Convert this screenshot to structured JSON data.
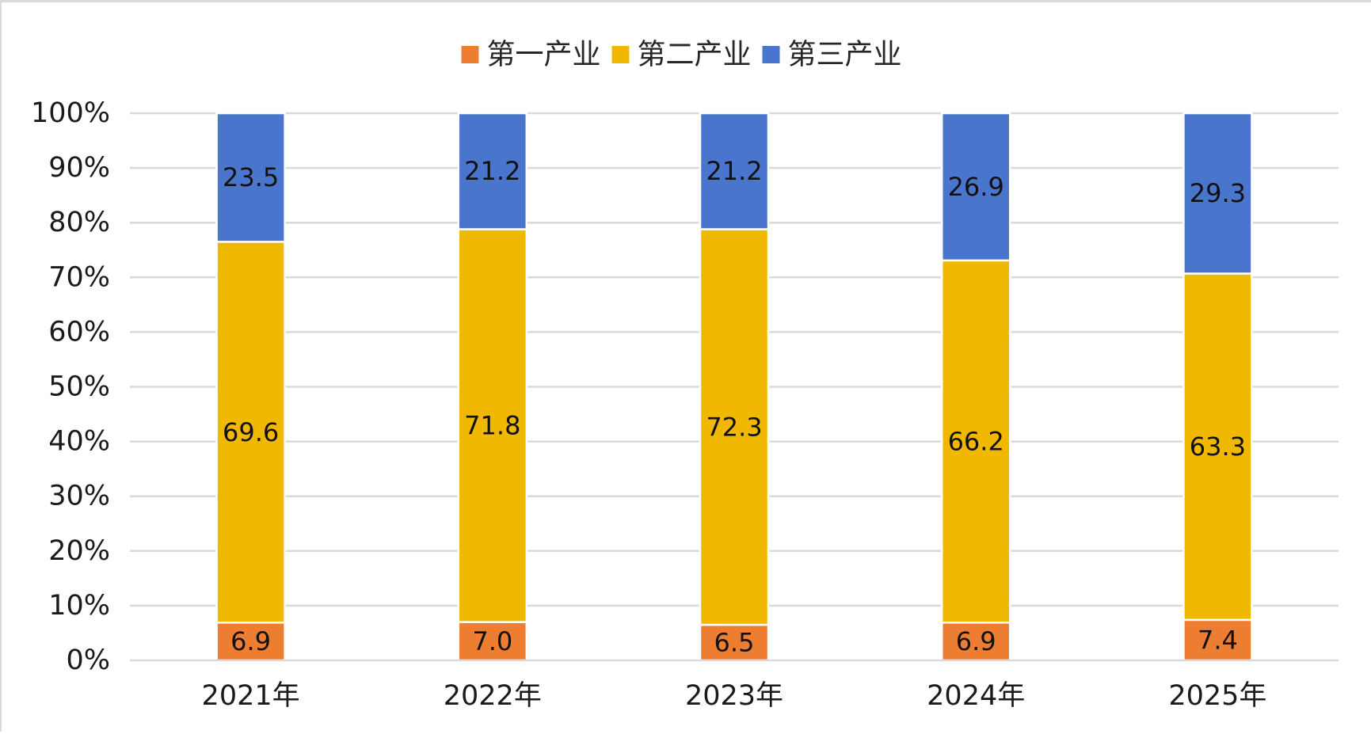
{
  "chart_data": {
    "type": "bar",
    "stacked": true,
    "categories": [
      "2021年",
      "2022年",
      "2023年",
      "2024年",
      "2025年"
    ],
    "series": [
      {
        "name": "第一产业",
        "color": "#ED7D31",
        "values": [
          6.9,
          7.0,
          6.5,
          6.9,
          7.4
        ],
        "labels": [
          "6.9",
          "7.0",
          "6.5",
          "6.9",
          "7.4"
        ]
      },
      {
        "name": "第二产业",
        "color": "#F0B800",
        "values": [
          69.6,
          71.8,
          72.3,
          66.2,
          63.3
        ],
        "labels": [
          "69.6",
          "71.8",
          "72.3",
          "66.2",
          "63.3"
        ]
      },
      {
        "name": "第三产业",
        "color": "#4A75CC",
        "values": [
          23.5,
          21.2,
          21.2,
          26.9,
          29.3
        ],
        "labels": [
          "23.5",
          "21.2",
          "21.2",
          "26.9",
          "29.3"
        ]
      }
    ],
    "y_ticks": [
      "0%",
      "10%",
      "20%",
      "30%",
      "40%",
      "50%",
      "60%",
      "70%",
      "80%",
      "90%",
      "100%"
    ],
    "ylim": [
      0,
      100
    ],
    "grid": true,
    "legend_position": "top",
    "title": "",
    "xlabel": "",
    "ylabel": ""
  }
}
